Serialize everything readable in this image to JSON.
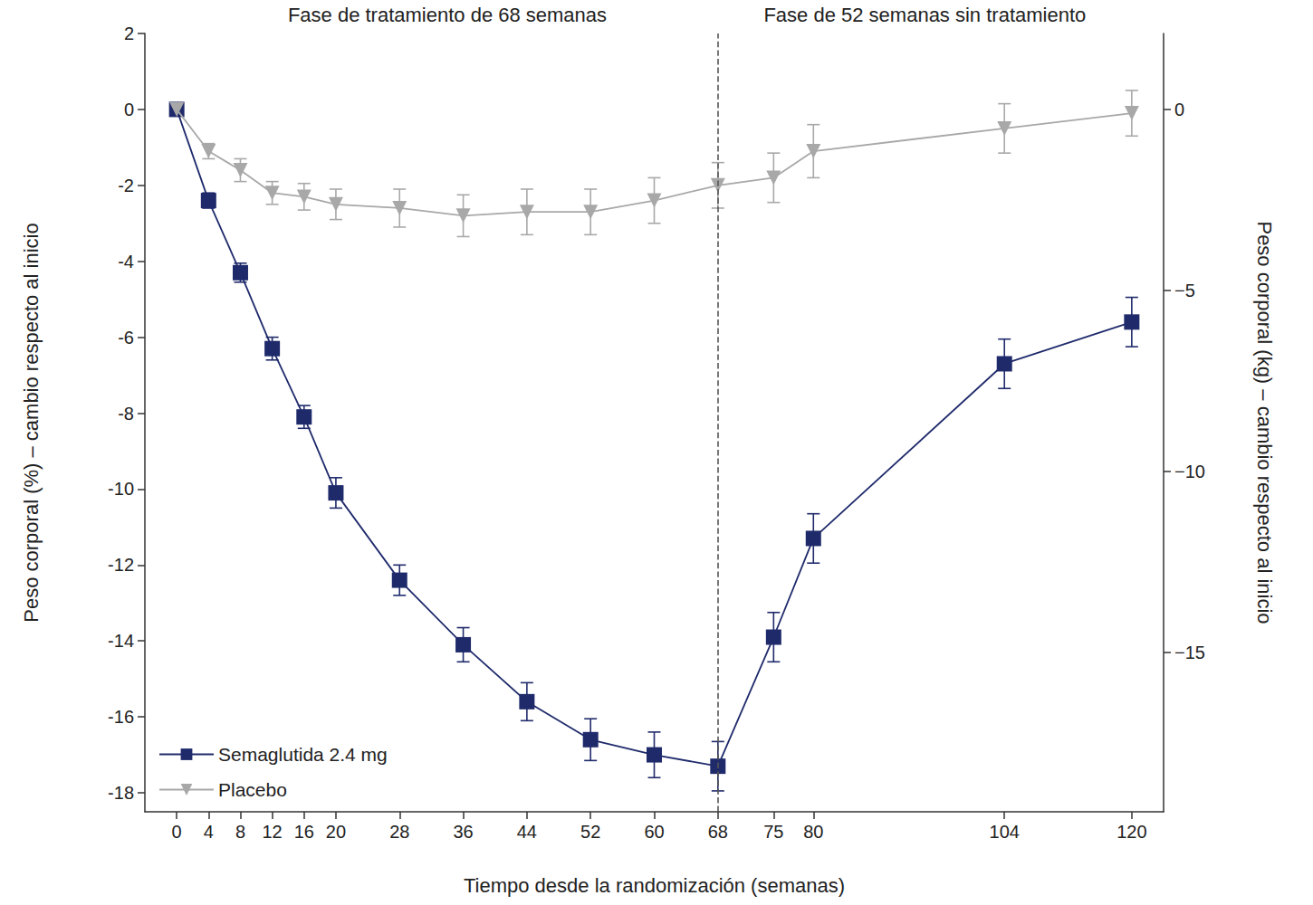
{
  "chart_data": {
    "type": "line",
    "xlabel": "Tiempo desde la randomización (semanas)",
    "ylabel": "Peso corporal (%) – cambio respecto al inicio",
    "y2label": "Peso corporal (kg) – cambio respecto al inicio",
    "x": [
      0,
      4,
      8,
      12,
      16,
      20,
      28,
      36,
      44,
      52,
      60,
      68,
      75,
      80,
      104,
      120
    ],
    "xlim": [
      -4,
      124
    ],
    "xticks": [
      0,
      4,
      8,
      12,
      16,
      20,
      28,
      36,
      44,
      52,
      60,
      68,
      75,
      80,
      104,
      120
    ],
    "ylim": [
      -18.5,
      2
    ],
    "yticks": [
      2,
      0,
      -2,
      -4,
      -6,
      -8,
      -10,
      -12,
      -14,
      -16,
      -18
    ],
    "y2lim": [
      -19.4,
      2.1
    ],
    "y2ticks": [
      {
        "value": -15,
        "label": "−15"
      },
      {
        "value": -10,
        "label": "−10"
      },
      {
        "value": -5,
        "label": "−5"
      },
      0
    ],
    "phases": [
      {
        "label": "Fase de tratamiento de 68 semanas",
        "start": 0,
        "end": 68
      },
      {
        "label": "Fase de 52 semanas sin tratamiento",
        "start": 68,
        "end": 120
      }
    ],
    "series": [
      {
        "name": "Semaglutida 2.4 mg",
        "color": "#1f2a6b",
        "marker": "square",
        "values": [
          0,
          -2.4,
          -4.3,
          -6.3,
          -8.1,
          -10.1,
          -12.4,
          -14.1,
          -15.6,
          -16.6,
          -17.0,
          -17.3,
          -13.9,
          -11.3,
          -6.7,
          -5.6
        ],
        "errors": [
          0.1,
          0.2,
          0.25,
          0.3,
          0.3,
          0.4,
          0.4,
          0.45,
          0.5,
          0.55,
          0.6,
          0.65,
          0.65,
          0.65,
          0.65,
          0.65
        ]
      },
      {
        "name": "Placebo",
        "color": "#a8a8a8",
        "marker": "triangle-down",
        "values": [
          0,
          -1.1,
          -1.6,
          -2.2,
          -2.3,
          -2.5,
          -2.6,
          -2.8,
          -2.7,
          -2.7,
          -2.4,
          -2.0,
          -1.8,
          -1.1,
          -0.5,
          -0.1
        ],
        "errors": [
          0.1,
          0.2,
          0.3,
          0.3,
          0.35,
          0.4,
          0.5,
          0.55,
          0.6,
          0.6,
          0.6,
          0.6,
          0.65,
          0.7,
          0.65,
          0.6
        ]
      }
    ],
    "legend": "lower left",
    "grid": false
  }
}
